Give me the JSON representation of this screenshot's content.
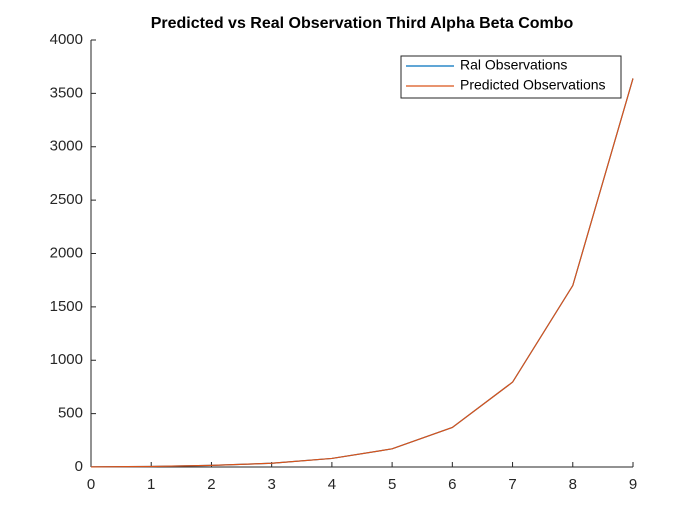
{
  "chart_data": {
    "type": "line",
    "title": "Predicted vs Real Observation Third Alpha Beta Combo",
    "x": [
      0,
      1,
      2,
      3,
      4,
      5,
      6,
      7,
      8,
      9
    ],
    "series": [
      {
        "name": "Ral Observations",
        "color": "#0072bd",
        "values": [
          1,
          5,
          15,
          35,
          80,
          170,
          370,
          795,
          1700,
          3640
        ]
      },
      {
        "name": "Predicted Observations",
        "color": "#d95319",
        "values": [
          1,
          5,
          15,
          35,
          80,
          170,
          370,
          795,
          1700,
          3640
        ]
      }
    ],
    "xlim": [
      0,
      9
    ],
    "xticks": [
      0,
      1,
      2,
      3,
      4,
      5,
      6,
      7,
      8,
      9
    ],
    "ylim": [
      0,
      4000
    ],
    "yticks": [
      0,
      500,
      1000,
      1500,
      2000,
      2500,
      3000,
      3500,
      4000
    ],
    "legend": "upper-right"
  }
}
